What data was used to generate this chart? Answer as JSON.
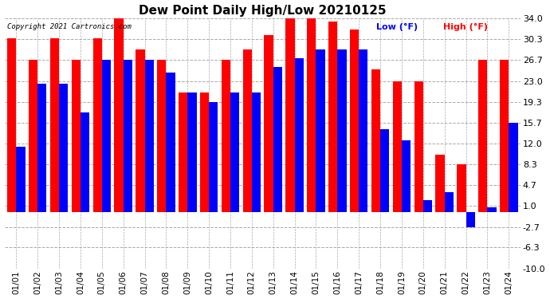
{
  "title": "Dew Point Daily High/Low 20210125",
  "copyright": "Copyright 2021 Cartronics.com",
  "legend_low": "Low (°F)",
  "legend_high": "High (°F)",
  "low_color": "blue",
  "high_color": "red",
  "background_color": "#ffffff",
  "plot_bg_color": "#ffffff",
  "grid_color": "#aaaaaa",
  "dates": [
    "01/01",
    "01/02",
    "01/03",
    "01/04",
    "01/05",
    "01/06",
    "01/07",
    "01/08",
    "01/09",
    "01/10",
    "01/11",
    "01/12",
    "01/13",
    "01/14",
    "01/15",
    "01/16",
    "01/17",
    "01/18",
    "01/19",
    "01/20",
    "01/21",
    "01/22",
    "01/23",
    "01/24"
  ],
  "high_values": [
    30.5,
    26.7,
    30.5,
    26.7,
    30.5,
    34.0,
    28.5,
    26.7,
    21.0,
    21.0,
    26.7,
    28.5,
    31.0,
    34.0,
    34.0,
    33.5,
    32.0,
    25.0,
    23.0,
    23.0,
    10.0,
    8.3,
    26.7,
    26.7
  ],
  "low_values": [
    11.5,
    22.5,
    22.5,
    17.5,
    26.7,
    26.7,
    26.7,
    24.5,
    21.0,
    19.3,
    21.0,
    21.0,
    25.5,
    27.0,
    28.5,
    28.5,
    28.5,
    14.5,
    12.5,
    2.0,
    3.5,
    -2.7,
    0.8,
    15.7
  ],
  "ylim": [
    -10.0,
    34.0
  ],
  "yticks": [
    -10.0,
    -6.3,
    -2.7,
    1.0,
    4.7,
    8.3,
    12.0,
    15.7,
    19.3,
    23.0,
    26.7,
    30.3,
    34.0
  ],
  "ylabel_right_fontsize": 8,
  "title_fontsize": 11,
  "bar_width": 0.42,
  "figsize": [
    6.9,
    3.75
  ],
  "dpi": 100
}
